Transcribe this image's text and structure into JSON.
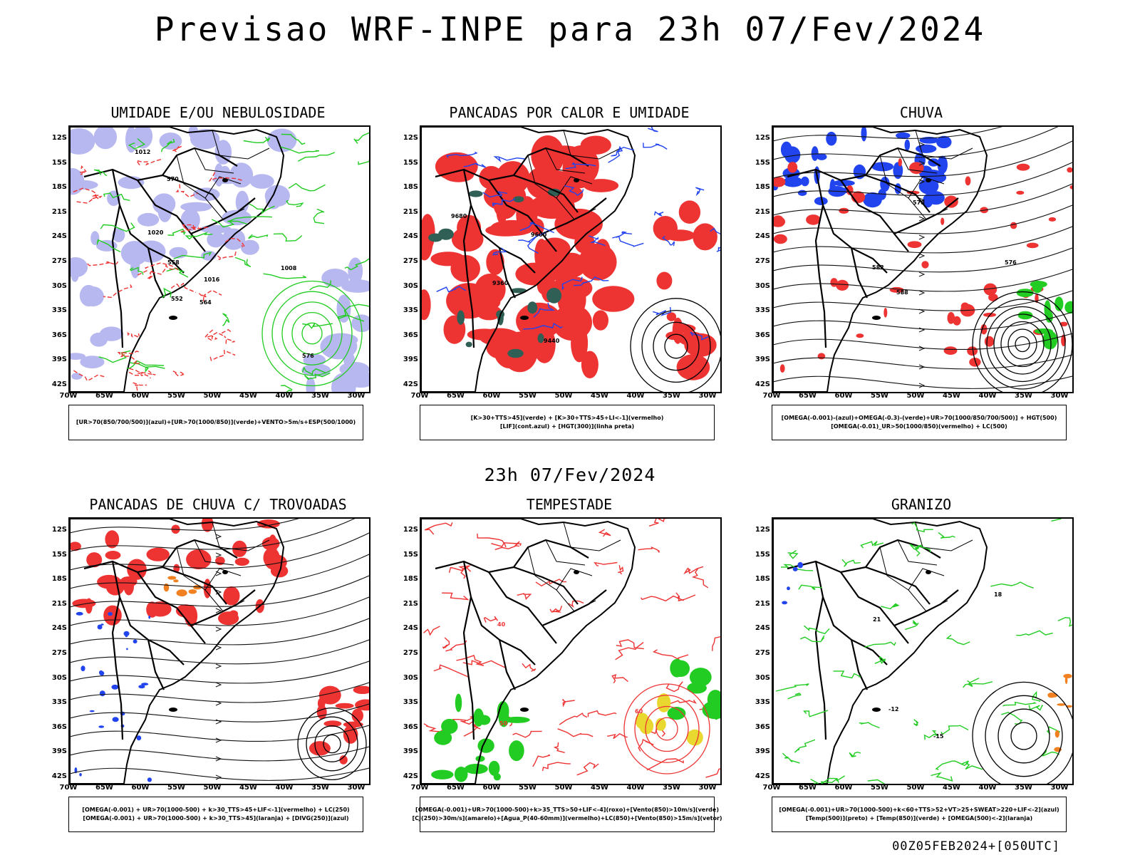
{
  "title": "Previsao WRF-INPE  para 23h 07/Fev/2024",
  "subtitle": "23h 07/Fev/2024",
  "run_stamp": "00Z05FEB2024+[050UTC]",
  "lat_labels": [
    "12S",
    "15S",
    "18S",
    "21S",
    "24S",
    "27S",
    "30S",
    "33S",
    "36S",
    "39S",
    "42S"
  ],
  "lon_labels": [
    "70W",
    "65W",
    "60W",
    "55W",
    "50W",
    "45W",
    "40W",
    "35W",
    "30W"
  ],
  "colors": {
    "red": "#ee3333",
    "blue": "#2244ee",
    "green": "#22cc22",
    "lavender": "#b8b8f0",
    "darkgreen": "#2f5f55",
    "yellow": "#e8d830",
    "orange": "#f08020",
    "purple": "#9933cc"
  },
  "panels": [
    {
      "id": "umidade",
      "title": "UMIDADE E/OU NEBULOSIDADE",
      "legend": [
        "[UR>70(850/700/500)](azul)+[UR>70(1000/850)](verde)+VENTO>5m/s+ESP(500/1000)"
      ],
      "contour_labels": [
        "1016",
        "1020",
        "1012",
        "1008",
        "576",
        "570",
        "564",
        "558",
        "552"
      ]
    },
    {
      "id": "pancadas-calor",
      "title": "PANCADAS POR CALOR E UMIDADE",
      "legend": [
        "[K>30+TTS>45](verde) + [K>30+TTS>45+LI<-1](vermelho)",
        "[LIF](cont.azul) + [HGT(300)](linha preta)"
      ],
      "contour_labels": [
        "9680",
        "9600",
        "9440",
        "9360"
      ]
    },
    {
      "id": "chuva",
      "title": "CHUVA",
      "legend": [
        "[OMEGA(-0.001)-(azul)+OMEGA(-0.3)-(verde)+UR>70(1000/850/700/500)] + HGT(500)",
        "[OMEGA(-0.01)_UR>50(1000/850)(vermelho) + LC(500)"
      ],
      "contour_labels": [
        "588",
        "582",
        "576",
        "570"
      ]
    },
    {
      "id": "trovoadas",
      "title": "PANCADAS DE CHUVA C/ TROVOADAS",
      "legend": [
        "[OMEGA(-0.001) + UR>70(1000-500) + k>30_TTS>45+LIF<-1](vermelho) + LC(250)",
        "[OMEGA(-0.001) + UR>70(1000-500) + k>30_TTS>45](laranja) + [DIVG(250)](azul)"
      ],
      "contour_labels": []
    },
    {
      "id": "tempestade",
      "title": "TEMPESTADE",
      "legend": [
        "[OMEGA(-0.001)+UR>70(1000-500)+k>35_TTS>50+LIF<-4](roxo)+[Vento(850)>10m/s](verde)",
        "[CJ(250)>30m/s](amarelo)+[Agua_P(40-60mm)](vermelho)+LC(850)+[Vento(850)>15m/s](vetor)"
      ],
      "contour_labels": [
        "40",
        "50",
        "60"
      ]
    },
    {
      "id": "granizo",
      "title": "GRANIZO",
      "legend": [
        "[OMEGA(-0.001)+UR>70(1000-500)+k<60+TTS>52+VT>25+SWEAT>220+LIF<-2](azul)",
        "[Temp(500)](preto) + [Temp(850)](verde) + [OMEGA(500)<-2](laranja)"
      ],
      "contour_labels": [
        "-15",
        "-12",
        "21",
        "18"
      ]
    }
  ]
}
